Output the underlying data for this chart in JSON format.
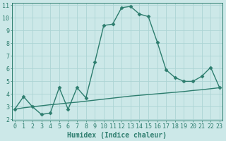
{
  "xlabel": "Humidex (Indice chaleur)",
  "x": [
    0,
    1,
    2,
    3,
    4,
    5,
    6,
    7,
    8,
    9,
    10,
    11,
    12,
    13,
    14,
    15,
    16,
    17,
    18,
    19,
    20,
    21,
    22,
    23
  ],
  "y_main": [
    2.8,
    3.8,
    3.0,
    2.4,
    2.5,
    4.5,
    2.8,
    4.5,
    3.7,
    6.5,
    9.4,
    9.5,
    10.8,
    10.9,
    10.3,
    10.1,
    8.1,
    5.9,
    5.3,
    5.0,
    5.0,
    5.4,
    6.1,
    4.5
  ],
  "y_trend": [
    2.8,
    2.92,
    3.0,
    3.08,
    3.16,
    3.22,
    3.3,
    3.36,
    3.44,
    3.52,
    3.6,
    3.68,
    3.76,
    3.84,
    3.9,
    3.96,
    4.02,
    4.08,
    4.14,
    4.2,
    4.28,
    4.34,
    4.42,
    4.5
  ],
  "ylim_min": 2,
  "ylim_max": 11,
  "xlim_min": 0,
  "xlim_max": 23,
  "yticks": [
    2,
    3,
    4,
    5,
    6,
    7,
    8,
    9,
    10,
    11
  ],
  "xticks": [
    0,
    1,
    2,
    3,
    4,
    5,
    6,
    7,
    8,
    9,
    10,
    11,
    12,
    13,
    14,
    15,
    16,
    17,
    18,
    19,
    20,
    21,
    22,
    23
  ],
  "line_color": "#2d7d6e",
  "bg_color": "#cce8e8",
  "grid_color": "#acd4d4",
  "marker": "D",
  "marker_size": 2.5,
  "line_width": 1.0,
  "xlabel_fontsize": 7,
  "tick_fontsize": 6,
  "label_color": "#2d7d6e"
}
